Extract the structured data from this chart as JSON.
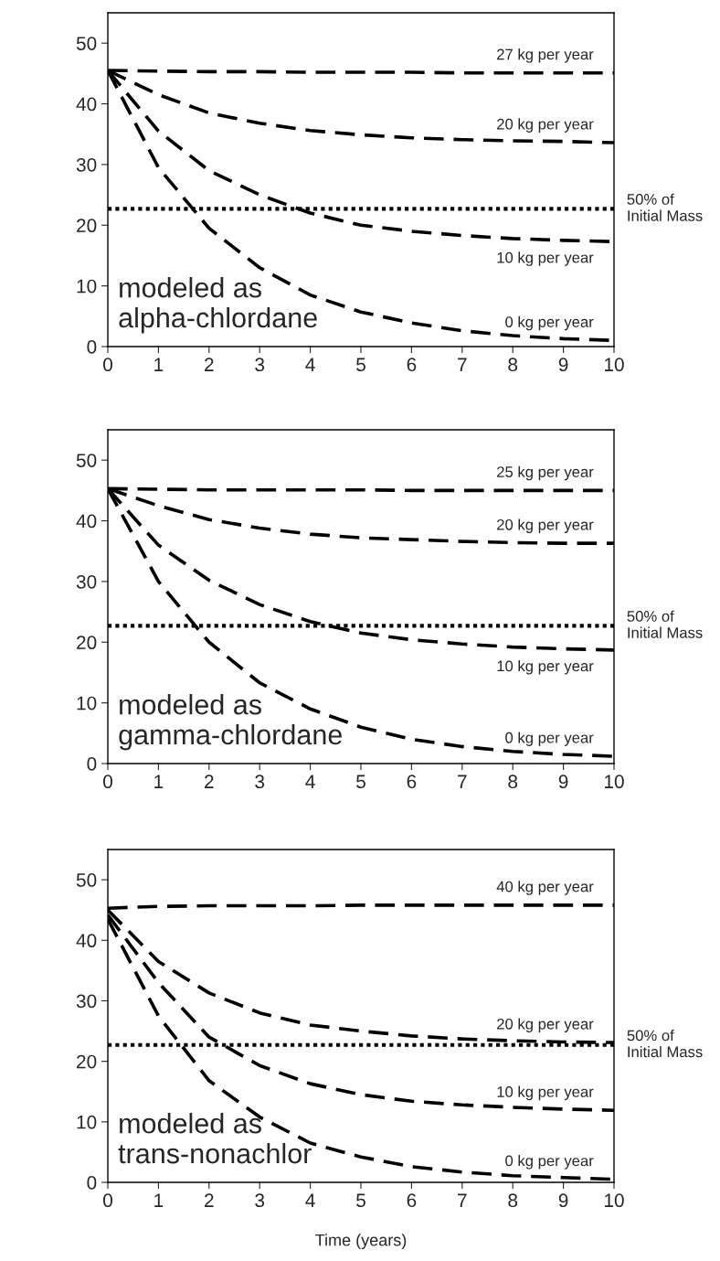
{
  "chart_data": [
    {
      "type": "line",
      "line_style": "dashed",
      "marker": "none",
      "grid": false,
      "legend": false,
      "xlim": [
        0,
        10
      ],
      "ylim": [
        0,
        55
      ],
      "xticks": [
        0,
        1,
        2,
        3,
        4,
        5,
        6,
        7,
        8,
        9,
        10
      ],
      "yticks": [
        0,
        10,
        20,
        30,
        40,
        50
      ],
      "x": [
        0,
        1,
        2,
        3,
        4,
        5,
        6,
        7,
        8,
        9,
        10
      ],
      "series": [
        {
          "name": "27 kg per year",
          "color": "#000000",
          "values": [
            45.5,
            45.4,
            45.3,
            45.3,
            45.2,
            45.2,
            45.2,
            45.1,
            45.1,
            45.1,
            45.1
          ]
        },
        {
          "name": "20 kg per year",
          "color": "#000000",
          "values": [
            45.5,
            41.5,
            38.5,
            36.8,
            35.6,
            34.9,
            34.4,
            34.1,
            33.9,
            33.8,
            33.6
          ]
        },
        {
          "name": "10 kg per year",
          "color": "#000000",
          "values": [
            45.5,
            35.5,
            29,
            25,
            22,
            20,
            19,
            18.3,
            17.8,
            17.5,
            17.3
          ]
        },
        {
          "name": "0 kg per year",
          "color": "#000000",
          "values": [
            45.5,
            29.5,
            19.5,
            13,
            8.5,
            5.7,
            3.9,
            2.6,
            1.8,
            1.3,
            1.0
          ]
        }
      ],
      "ref_lines": [
        {
          "axis": "y",
          "value": 22.7,
          "label": "50% of\nInitial Mass",
          "color": "#000000",
          "line_style": "dotted"
        }
      ],
      "annotations": [
        "modeled as\nalpha-chlordane"
      ]
    },
    {
      "type": "line",
      "line_style": "dashed",
      "marker": "none",
      "grid": false,
      "legend": false,
      "xlim": [
        0,
        10
      ],
      "ylim": [
        0,
        55
      ],
      "xticks": [
        0,
        1,
        2,
        3,
        4,
        5,
        6,
        7,
        8,
        9,
        10
      ],
      "yticks": [
        0,
        10,
        20,
        30,
        40,
        50
      ],
      "x": [
        0,
        1,
        2,
        3,
        4,
        5,
        6,
        7,
        8,
        9,
        10
      ],
      "series": [
        {
          "name": "25 kg per year",
          "color": "#000000",
          "values": [
            45.3,
            45.2,
            45.1,
            45.1,
            45.1,
            45.1,
            45.0,
            45.0,
            45.0,
            45.0,
            45.0
          ]
        },
        {
          "name": "20 kg per year",
          "color": "#000000",
          "values": [
            45.3,
            42.5,
            40.2,
            38.8,
            37.8,
            37.2,
            36.9,
            36.6,
            36.4,
            36.3,
            36.3
          ]
        },
        {
          "name": "10 kg per year",
          "color": "#000000",
          "values": [
            45.3,
            36,
            30.2,
            26.2,
            23.4,
            21.5,
            20.4,
            19.7,
            19.2,
            18.9,
            18.7
          ]
        },
        {
          "name": "0 kg per year",
          "color": "#000000",
          "values": [
            45.3,
            30,
            20,
            13.3,
            9,
            6,
            4,
            2.8,
            2,
            1.5,
            1.2
          ]
        }
      ],
      "ref_lines": [
        {
          "axis": "y",
          "value": 22.7,
          "label": "50% of\nInitial Mass",
          "color": "#000000",
          "line_style": "dotted"
        }
      ],
      "annotations": [
        "modeled as\ngamma-chlordane"
      ]
    },
    {
      "type": "line",
      "line_style": "dashed",
      "marker": "none",
      "grid": false,
      "legend": false,
      "xlim": [
        0,
        10
      ],
      "ylim": [
        0,
        55
      ],
      "xticks": [
        0,
        1,
        2,
        3,
        4,
        5,
        6,
        7,
        8,
        9,
        10
      ],
      "yticks": [
        0,
        10,
        20,
        30,
        40,
        50
      ],
      "xlabel": "Time (years)",
      "x": [
        0,
        1,
        2,
        3,
        4,
        5,
        6,
        7,
        8,
        9,
        10
      ],
      "series": [
        {
          "name": "40 kg per year",
          "color": "#000000",
          "values": [
            45.3,
            45.6,
            45.7,
            45.7,
            45.7,
            45.8,
            45.8,
            45.8,
            45.8,
            45.8,
            45.8
          ]
        },
        {
          "name": "20 kg per year",
          "color": "#000000",
          "values": [
            45,
            36.5,
            31.3,
            28,
            26,
            25,
            24.2,
            23.7,
            23.4,
            23.2,
            23.1
          ]
        },
        {
          "name": "10 kg per year",
          "color": "#000000",
          "values": [
            44.2,
            33,
            24,
            19.3,
            16.3,
            14.5,
            13.4,
            12.8,
            12.4,
            12.1,
            11.9
          ]
        },
        {
          "name": "0 kg per year",
          "color": "#000000",
          "values": [
            43.5,
            27.5,
            16.8,
            10.8,
            6.5,
            4.2,
            2.6,
            1.7,
            1.1,
            0.8,
            0.5
          ]
        }
      ],
      "ref_lines": [
        {
          "axis": "y",
          "value": 22.7,
          "label": "50% of\nInitial Mass",
          "color": "#000000",
          "line_style": "dotted"
        }
      ],
      "annotations": [
        "modeled as\ntrans-nonachlor"
      ]
    }
  ]
}
